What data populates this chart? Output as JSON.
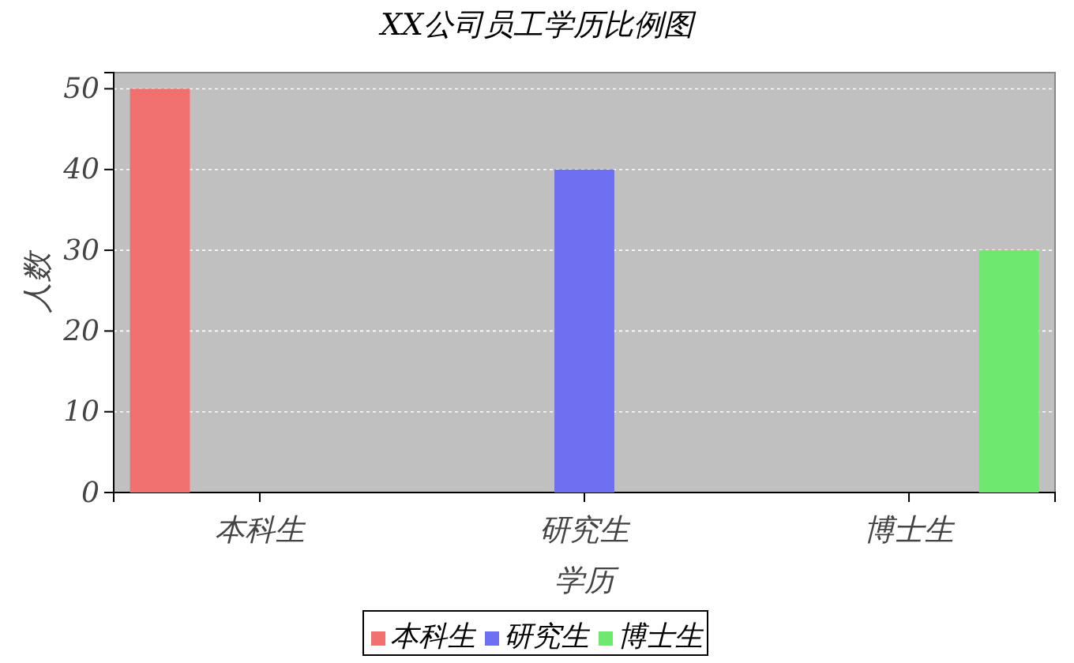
{
  "chart_data": {
    "type": "bar",
    "title": "XX公司员工学历比例图",
    "xlabel": "学历",
    "ylabel": "人数",
    "categories": [
      "本科生",
      "研究生",
      "博士生"
    ],
    "series": [
      {
        "name": "本科生",
        "color": "#f07070",
        "values": [
          50,
          null,
          null
        ]
      },
      {
        "name": "研究生",
        "color": "#6f6ff2",
        "values": [
          null,
          40,
          null
        ]
      },
      {
        "name": "博士生",
        "color": "#6ee86e",
        "values": [
          null,
          null,
          30
        ]
      }
    ],
    "ylim": [
      0,
      52
    ],
    "yticks": [
      0,
      10,
      20,
      30,
      40,
      50
    ],
    "grid": "y",
    "legend": "bottom"
  }
}
